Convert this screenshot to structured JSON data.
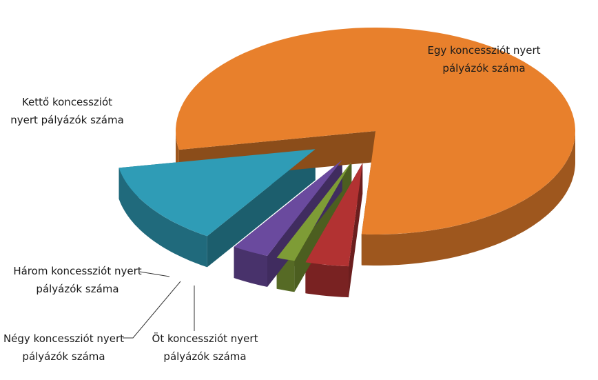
{
  "chart_data": {
    "type": "pie3d",
    "categories": [
      "Egy koncessziót nyert pályázók száma",
      "Kettő koncessziót nyert pályázók száma",
      "Három koncessziót nyert pályázók száma",
      "Négy koncessziót nyert pályázók száma",
      "Öt koncessziót nyert pályázók száma"
    ],
    "values": [
      79,
      13,
      3,
      1.5,
      3.5
    ],
    "colors": [
      "#e8802c",
      "#2f9cb6",
      "#6a4a9e",
      "#7e9c36",
      "#b23232"
    ]
  }
}
